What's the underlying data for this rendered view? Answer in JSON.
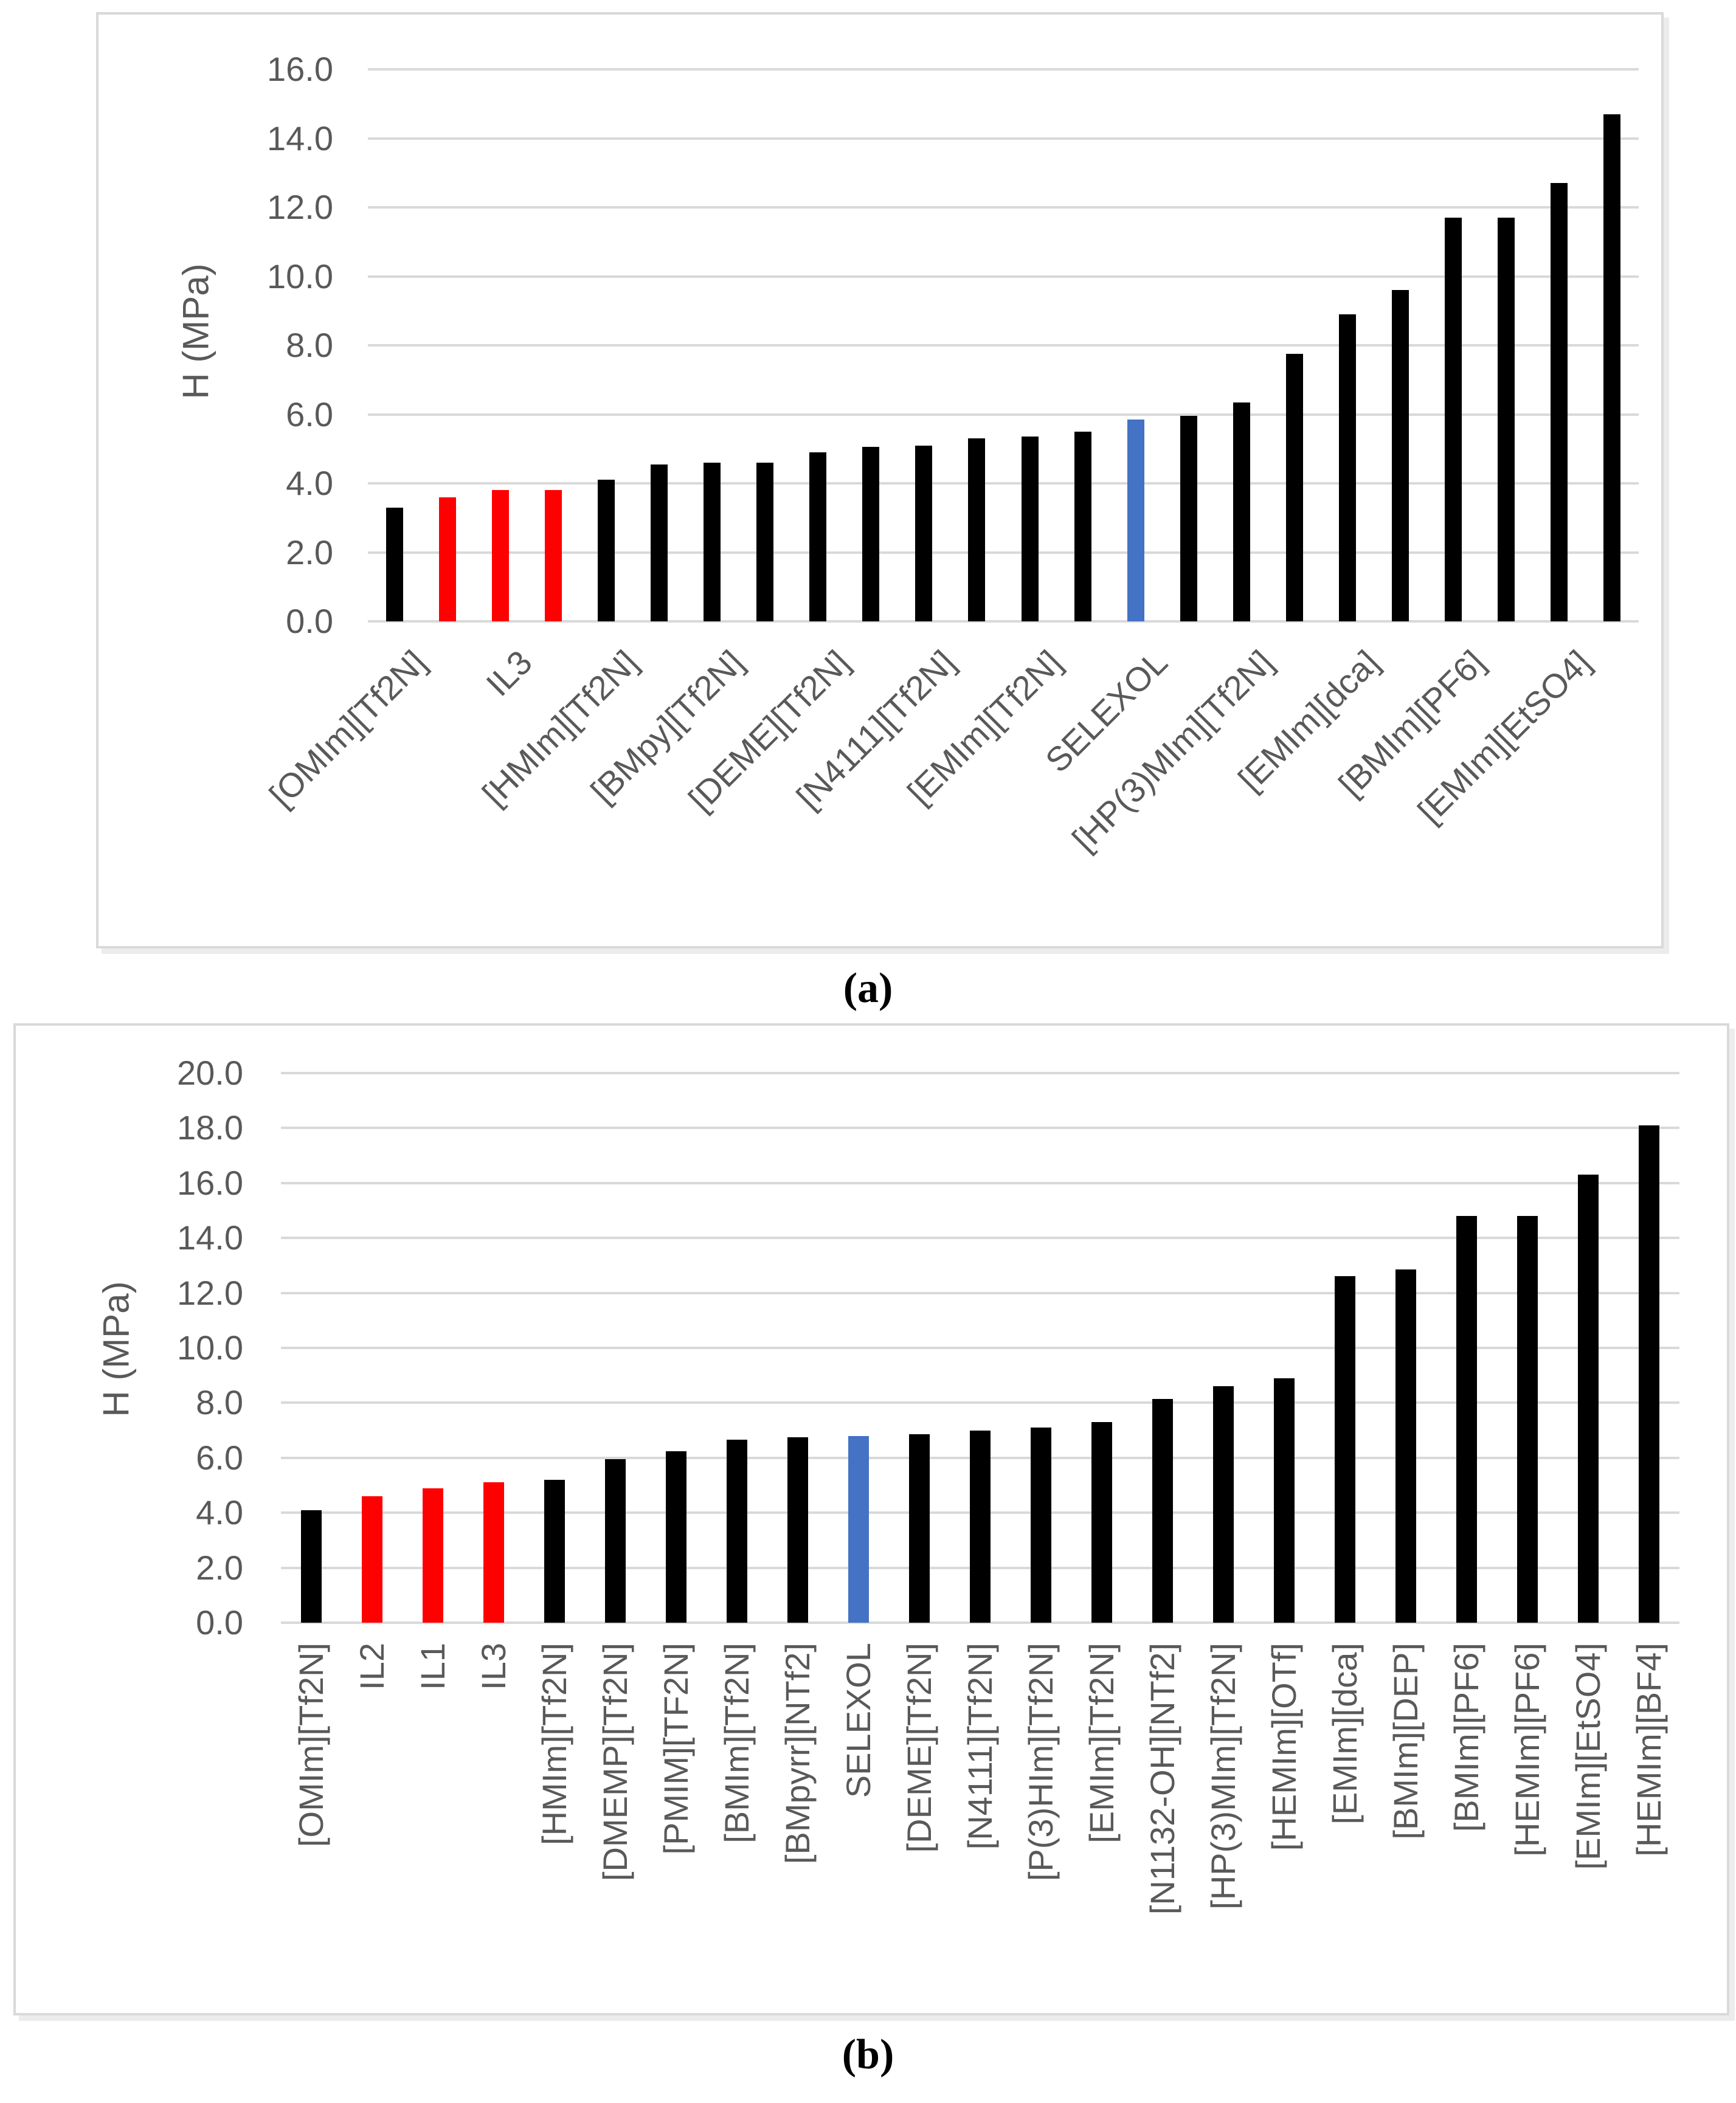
{
  "figure": {
    "caption_a": "(a)",
    "caption_b": "(b)"
  },
  "colors": {
    "bar_black": "#000000",
    "bar_red": "#FF0000",
    "bar_blue": "#4472C4",
    "gridline": "#D9D9D9",
    "axis_text": "#595959",
    "panel_border": "#D9D9D9"
  },
  "chart_data": [
    {
      "id": "a",
      "type": "bar",
      "caption": "(a)",
      "ylabel": "H (MPa)",
      "ylim": [
        0,
        16
      ],
      "ytick_step": 2.0,
      "yticks": [
        "0.0",
        "2.0",
        "4.0",
        "6.0",
        "8.0",
        "10.0",
        "12.0",
        "14.0",
        "16.0"
      ],
      "grid": true,
      "legend_position": "none",
      "x_label_rotation": -45,
      "x_label_interval": 2,
      "bars": [
        {
          "label": "[OMIm][Tf2N]",
          "value": 3.3,
          "color": "black"
        },
        {
          "label": "",
          "value": 3.6,
          "color": "red"
        },
        {
          "label": "IL3",
          "value": 3.8,
          "color": "red"
        },
        {
          "label": "",
          "value": 3.8,
          "color": "red"
        },
        {
          "label": "[HMIm][Tf2N]",
          "value": 4.1,
          "color": "black"
        },
        {
          "label": "",
          "value": 4.55,
          "color": "black"
        },
        {
          "label": "[BMpy][Tf2N]",
          "value": 4.6,
          "color": "black"
        },
        {
          "label": "",
          "value": 4.6,
          "color": "black"
        },
        {
          "label": "[DEME][Tf2N]",
          "value": 4.9,
          "color": "black"
        },
        {
          "label": "",
          "value": 5.05,
          "color": "black"
        },
        {
          "label": "[N4111][Tf2N]",
          "value": 5.1,
          "color": "black"
        },
        {
          "label": "",
          "value": 5.3,
          "color": "black"
        },
        {
          "label": "[EMIm][Tf2N]",
          "value": 5.35,
          "color": "black"
        },
        {
          "label": "",
          "value": 5.5,
          "color": "black"
        },
        {
          "label": "SELEXOL",
          "value": 5.85,
          "color": "blue"
        },
        {
          "label": "",
          "value": 5.95,
          "color": "black"
        },
        {
          "label": "[HP(3)MIm][Tf2N]",
          "value": 6.35,
          "color": "black"
        },
        {
          "label": "",
          "value": 7.75,
          "color": "black"
        },
        {
          "label": "[EMIm][dca]",
          "value": 8.9,
          "color": "black"
        },
        {
          "label": "",
          "value": 9.6,
          "color": "black"
        },
        {
          "label": "[BMIm][PF6]",
          "value": 11.7,
          "color": "black"
        },
        {
          "label": "",
          "value": 11.7,
          "color": "black"
        },
        {
          "label": "[EMIm][EtSO4]",
          "value": 12.7,
          "color": "black"
        },
        {
          "label": "",
          "value": 14.7,
          "color": "black"
        }
      ]
    },
    {
      "id": "b",
      "type": "bar",
      "caption": "(b)",
      "ylabel": "H (MPa)",
      "ylim": [
        0,
        20
      ],
      "ytick_step": 2.0,
      "yticks": [
        "0.0",
        "2.0",
        "4.0",
        "6.0",
        "8.0",
        "10.0",
        "12.0",
        "14.0",
        "16.0",
        "18.0",
        "20.0"
      ],
      "grid": true,
      "legend_position": "none",
      "x_label_rotation": -90,
      "x_label_interval": 1,
      "bars": [
        {
          "label": "[OMIm][Tf2N]",
          "value": 4.1,
          "color": "black"
        },
        {
          "label": "IL2",
          "value": 4.6,
          "color": "red"
        },
        {
          "label": "IL1",
          "value": 4.9,
          "color": "red"
        },
        {
          "label": "IL3",
          "value": 5.1,
          "color": "red"
        },
        {
          "label": "[HMIm][Tf2N]",
          "value": 5.2,
          "color": "black"
        },
        {
          "label": "[DMEMP][Tf2N]",
          "value": 5.95,
          "color": "black"
        },
        {
          "label": "[PMIM][TF2N]",
          "value": 6.25,
          "color": "black"
        },
        {
          "label": "[BMIm][Tf2N]",
          "value": 6.65,
          "color": "black"
        },
        {
          "label": "[BMpyrr][NTf2]",
          "value": 6.75,
          "color": "black"
        },
        {
          "label": "SELEXOL",
          "value": 6.8,
          "color": "blue"
        },
        {
          "label": "[DEME][Tf2N]",
          "value": 6.85,
          "color": "black"
        },
        {
          "label": "[N4111][Tf2N]",
          "value": 7.0,
          "color": "black"
        },
        {
          "label": "[P(3)HIm][Tf2N]",
          "value": 7.1,
          "color": "black"
        },
        {
          "label": "[EMIm][Tf2N]",
          "value": 7.3,
          "color": "black"
        },
        {
          "label": "[N1132-OH][NTf2]",
          "value": 8.15,
          "color": "black"
        },
        {
          "label": "[HP(3)MIm][Tf2N]",
          "value": 8.6,
          "color": "black"
        },
        {
          "label": "[HEMIm][OTf]",
          "value": 8.9,
          "color": "black"
        },
        {
          "label": "[EMIm][dca]",
          "value": 12.6,
          "color": "black"
        },
        {
          "label": "[BMIm][DEP]",
          "value": 12.85,
          "color": "black"
        },
        {
          "label": "[BMIm][PF6]",
          "value": 14.8,
          "color": "black"
        },
        {
          "label": "[HEMIm][PF6]",
          "value": 14.8,
          "color": "black"
        },
        {
          "label": "[EMIm][EtSO4]",
          "value": 16.3,
          "color": "black"
        },
        {
          "label": "[HEMIm][BF4]",
          "value": 18.1,
          "color": "black"
        }
      ]
    }
  ]
}
